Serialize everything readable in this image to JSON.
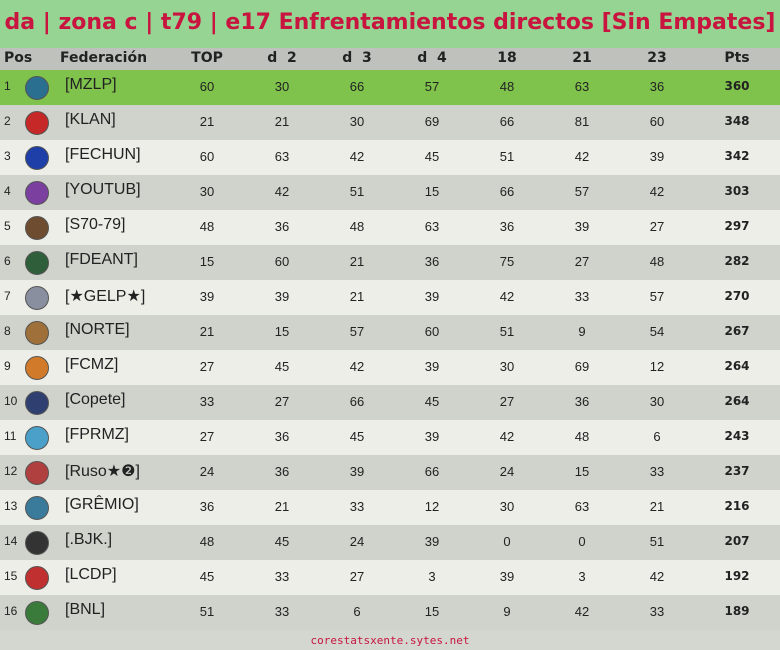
{
  "title": "da | zona c | t79 | e17 Enfrentamientos directos [Sin Empates]",
  "table": {
    "headers": [
      "Pos",
      "Federación",
      "TOP",
      "d  2",
      "d  3",
      "d  4",
      "18",
      "21",
      "23",
      "Pts"
    ],
    "rows": [
      [
        1,
        "[MZLP]",
        60,
        30,
        66,
        57,
        48,
        63,
        36,
        360
      ],
      [
        2,
        "[KLAN]",
        21,
        21,
        30,
        69,
        66,
        81,
        60,
        348
      ],
      [
        3,
        "[FECHUN]",
        60,
        63,
        42,
        45,
        51,
        42,
        39,
        342
      ],
      [
        4,
        "[YOUTUB]",
        30,
        42,
        51,
        15,
        66,
        57,
        42,
        303
      ],
      [
        5,
        "[S70-79]",
        48,
        36,
        48,
        63,
        36,
        39,
        27,
        297
      ],
      [
        6,
        "[FDEANT]",
        15,
        60,
        21,
        36,
        75,
        27,
        48,
        282
      ],
      [
        7,
        "[★GELP★]",
        39,
        39,
        21,
        39,
        42,
        33,
        57,
        270
      ],
      [
        8,
        "[NORTE]",
        21,
        15,
        57,
        60,
        51,
        9,
        54,
        267
      ],
      [
        9,
        "[FCMZ]",
        27,
        45,
        42,
        39,
        30,
        69,
        12,
        264
      ],
      [
        10,
        "[Copete]",
        33,
        27,
        66,
        45,
        27,
        36,
        30,
        264
      ],
      [
        11,
        "[FPRMZ]",
        27,
        36,
        45,
        39,
        42,
        48,
        6,
        243
      ],
      [
        12,
        "[Ruso★❷]",
        24,
        36,
        39,
        66,
        24,
        15,
        33,
        237
      ],
      [
        13,
        "[GRÊMIO]",
        36,
        21,
        33,
        12,
        30,
        63,
        21,
        216
      ],
      [
        14,
        "[.BJK.]",
        48,
        45,
        24,
        39,
        0,
        0,
        51,
        207
      ],
      [
        15,
        "[LCDP]",
        45,
        33,
        27,
        3,
        39,
        3,
        42,
        192
      ],
      [
        16,
        "[BNL]",
        51,
        33,
        6,
        15,
        9,
        42,
        33,
        189
      ]
    ]
  },
  "footer": "corestatsxente.sytes.net"
}
